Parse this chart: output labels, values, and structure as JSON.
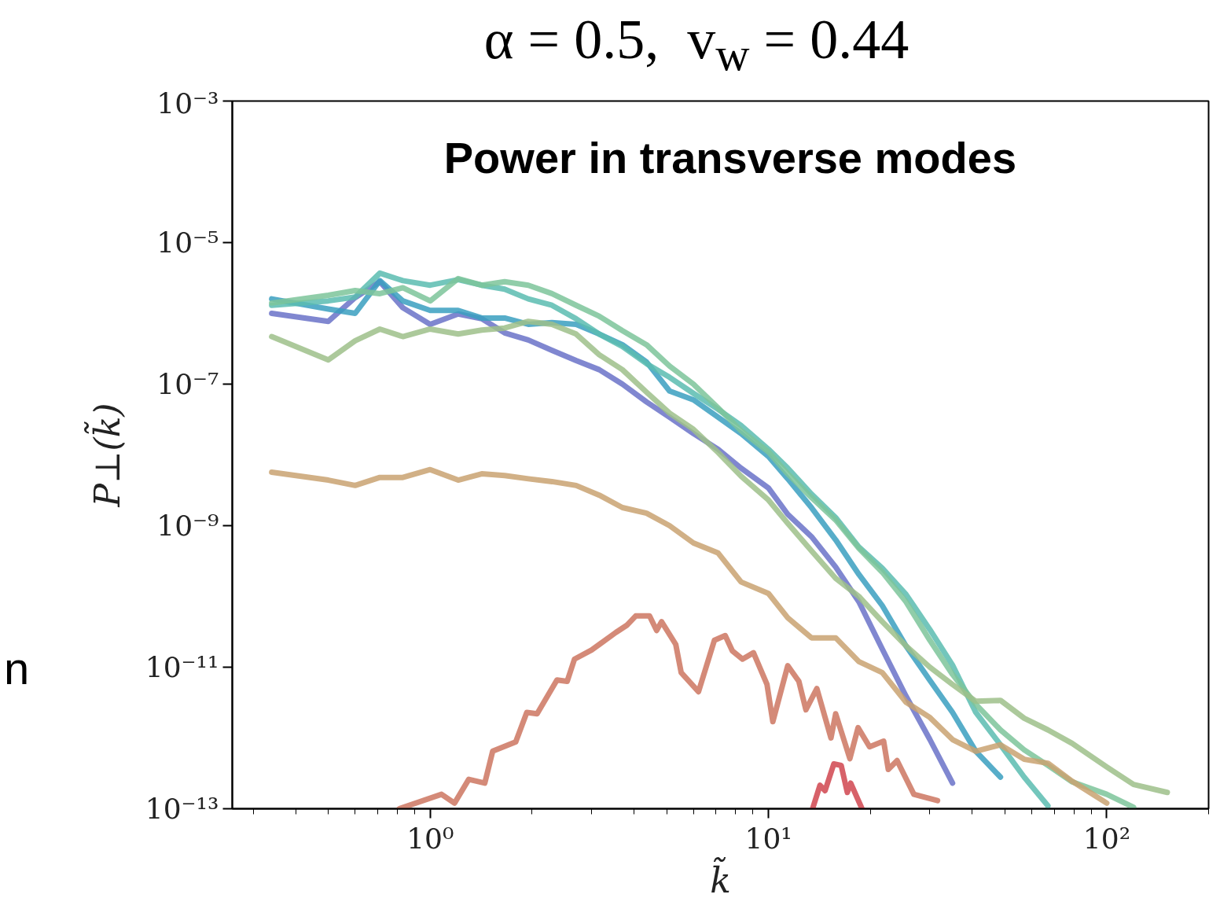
{
  "chart_data": {
    "type": "line",
    "title": "α = 0.5,  v$_{w}$ = 0.44",
    "subtitle": "Power in transverse modes",
    "xlabel": "k̃",
    "ylabel": "P⊥(k̃)",
    "annotations": [
      "n"
    ],
    "x": [
      0.34,
      0.5,
      0.6,
      0.71,
      0.83,
      1.0,
      1.21,
      1.42,
      1.66,
      1.95,
      2.29,
      2.7,
      3.16,
      3.7,
      4.36,
      5.1,
      6.0,
      7.1,
      8.3,
      10,
      11.4,
      13.4,
      15.8,
      18.5,
      21.7,
      25.5,
      30,
      35,
      41,
      48.5,
      57,
      67,
      79,
      100,
      120,
      151
    ],
    "series": [
      {
        "color": "#6a72c8",
        "values": [
          1e-06,
          7.7e-07,
          1.67e-06,
          2.8e-06,
          1.2e-06,
          7e-07,
          9.8e-07,
          8.4e-07,
          5.3e-07,
          4.2e-07,
          3e-07,
          2.15e-07,
          1.6e-07,
          1e-07,
          5.6e-08,
          3.4e-08,
          2e-08,
          1.2e-08,
          6.5e-09,
          3.4e-09,
          1.45e-09,
          7e-10,
          2.6e-10,
          8.4e-11,
          1.8e-11,
          3.9e-12,
          9.5e-13,
          2.3e-13,
          null,
          null,
          null,
          null,
          null,
          null,
          null,
          null
        ]
      },
      {
        "color": "#3a9fc0",
        "values": [
          1.6e-06,
          1.15e-06,
          1e-06,
          2.9e-06,
          1.5e-06,
          1.1e-06,
          1.1e-06,
          8.6e-07,
          8.6e-07,
          7e-07,
          7.4e-07,
          7e-07,
          5.1e-07,
          3.6e-07,
          2.05e-07,
          8e-08,
          6e-08,
          3.4e-08,
          2e-08,
          9.5e-09,
          4.6e-09,
          1.8e-09,
          6.3e-10,
          2.05e-10,
          7.4e-11,
          2e-11,
          6.5e-12,
          2.3e-12,
          6.5e-13,
          2.8e-13,
          null,
          null,
          null,
          null,
          null,
          null
        ]
      },
      {
        "color": "#5bbcb0",
        "values": [
          1.3e-06,
          1.5e-06,
          1.7e-06,
          3.7e-06,
          2.9e-06,
          2.5e-06,
          3e-06,
          2.5e-06,
          2.2e-06,
          1.6e-06,
          1.3e-06,
          8.4e-07,
          5.1e-07,
          3.4e-07,
          1.95e-07,
          1.25e-07,
          7.4e-08,
          4.4e-08,
          2.6e-08,
          1.2e-08,
          6.5e-09,
          2.8e-09,
          1.3e-09,
          5e-10,
          2.5e-10,
          1.07e-10,
          3.4e-11,
          1.07e-11,
          2.3e-12,
          8e-13,
          2.8e-13,
          1.1e-13,
          null,
          null,
          null,
          null
        ]
      },
      {
        "color": "#7cc49a",
        "values": [
          1.4e-06,
          1.8e-06,
          2.1e-06,
          1.9e-06,
          2.3e-06,
          1.5e-06,
          3.1e-06,
          2.5e-06,
          2.8e-06,
          2.5e-06,
          1.9e-06,
          1.3e-06,
          9.1e-07,
          5.7e-07,
          3.6e-07,
          1.8e-07,
          1e-07,
          4.6e-08,
          2.2e-08,
          1.1e-08,
          5.4e-09,
          2.5e-09,
          1.2e-09,
          4.8e-10,
          2.2e-10,
          8.4e-11,
          2.4e-11,
          7.9e-12,
          3e-12,
          1.3e-12,
          6.8e-13,
          4.1e-13,
          2.4e-13,
          1.6e-13,
          1.05e-13,
          null
        ]
      },
      {
        "color": "#9dbf8a",
        "values": [
          4.7e-07,
          2.2e-07,
          4.1e-07,
          6e-07,
          4.7e-07,
          6e-07,
          5.1e-07,
          5.8e-07,
          6.2e-07,
          7.7e-07,
          7e-07,
          5.1e-07,
          2.6e-07,
          1.6e-07,
          7.7e-08,
          3.9e-08,
          2.3e-08,
          1.08e-08,
          5e-09,
          2.3e-09,
          1.08e-09,
          4.4e-10,
          1.8e-10,
          1e-10,
          4.4e-11,
          2e-11,
          1e-11,
          5.7e-12,
          3.3e-12,
          3.4e-12,
          1.9e-12,
          1.3e-12,
          8.4e-13,
          3.9e-13,
          2.2e-13,
          1.7e-13
        ]
      },
      {
        "color": "#c9a271",
        "values": [
          5.7e-09,
          4.4e-09,
          3.7e-09,
          4.8e-09,
          4.8e-09,
          6.2e-09,
          4.4e-09,
          5.4e-09,
          5.1e-09,
          4.6e-09,
          4.2e-09,
          3.7e-09,
          2.7e-09,
          1.8e-09,
          1.5e-09,
          1e-09,
          5.7e-10,
          4.1e-10,
          1.6e-10,
          1.1e-10,
          5e-11,
          2.6e-11,
          2.6e-11,
          1.2e-11,
          8.4e-12,
          3.2e-12,
          1.95e-12,
          9.5e-13,
          6.5e-13,
          8e-13,
          5e-13,
          4.4e-13,
          2.45e-13,
          1.2e-13,
          null,
          null
        ]
      },
      {
        "color": "#cd7560",
        "x": [
          0.81,
          1.08,
          1.18,
          1.3,
          1.45,
          1.53,
          1.79,
          1.93,
          2.07,
          2.37,
          2.54,
          2.67,
          3.0,
          3.54,
          3.81,
          4.05,
          4.45,
          4.67,
          4.83,
          5.32,
          5.52,
          6.21,
          6.92,
          7.45,
          7.82,
          8.38,
          9.03,
          9.9,
          10.3,
          11.4,
          12.3,
          12.9,
          13.9,
          15.3,
          15.8,
          17.4,
          18.4,
          19.9,
          21.9,
          22.6,
          24.0,
          26.9,
          31.6
        ],
        "values": [
          1e-13,
          1.6e-13,
          1.2e-13,
          2.6e-13,
          2.3e-13,
          6.5e-13,
          8.8e-13,
          2.3e-12,
          2.2e-12,
          6.6e-12,
          6.3e-12,
          1.3e-11,
          1.75e-11,
          3.1e-11,
          3.9e-11,
          5.3e-11,
          5.3e-11,
          3.3e-11,
          4.4e-11,
          2.1e-11,
          8.4e-12,
          4.5e-12,
          2.4e-11,
          2.8e-11,
          1.7e-11,
          1.3e-11,
          1.6e-11,
          5.7e-12,
          1.7e-12,
          1.05e-11,
          6.3e-12,
          2.5e-12,
          5e-12,
          1e-12,
          2.2e-12,
          5.1e-13,
          1.4e-12,
          7.5e-13,
          9e-13,
          3.6e-13,
          4.8e-13,
          1.6e-13,
          1.3e-13
        ]
      },
      {
        "color": "#d0454f",
        "x": [
          13.5,
          14.2,
          14.7,
          15.6,
          16.4,
          17.1,
          17.5,
          18.9
        ],
        "values": [
          1e-13,
          2.15e-13,
          1.8e-13,
          4.3e-13,
          4.1e-13,
          1.7e-13,
          2.3e-13,
          1e-13
        ]
      }
    ],
    "log": "xy",
    "xlim": [
      0.26,
      200
    ],
    "ylim": [
      1e-13,
      0.001
    ],
    "xticks": [
      {
        "value": 0.3,
        "label": null
      },
      {
        "value": 0.4,
        "label": null
      },
      {
        "value": 0.5,
        "label": null
      },
      {
        "value": 0.6,
        "label": null
      },
      {
        "value": 0.7,
        "label": null
      },
      {
        "value": 0.8,
        "label": null
      },
      {
        "value": 0.9,
        "label": null
      },
      {
        "value": 1,
        "label": "10⁰"
      },
      {
        "value": 2,
        "label": null
      },
      {
        "value": 3,
        "label": null
      },
      {
        "value": 4,
        "label": null
      },
      {
        "value": 5,
        "label": null
      },
      {
        "value": 6,
        "label": null
      },
      {
        "value": 7,
        "label": null
      },
      {
        "value": 8,
        "label": null
      },
      {
        "value": 9,
        "label": null
      },
      {
        "value": 10,
        "label": "10¹"
      },
      {
        "value": 20,
        "label": null
      },
      {
        "value": 30,
        "label": null
      },
      {
        "value": 40,
        "label": null
      },
      {
        "value": 50,
        "label": null
      },
      {
        "value": 60,
        "label": null
      },
      {
        "value": 70,
        "label": null
      },
      {
        "value": 80,
        "label": null
      },
      {
        "value": 90,
        "label": null
      },
      {
        "value": 100,
        "label": "10²"
      },
      {
        "value": 200,
        "label": null
      }
    ],
    "yticks": [
      {
        "value": 1e-13,
        "label": "10⁻¹³"
      },
      {
        "value": 1e-11,
        "label": "10⁻¹¹"
      },
      {
        "value": 1e-09,
        "label": "10⁻⁹"
      },
      {
        "value": 1e-07,
        "label": "10⁻⁷"
      },
      {
        "value": 1e-05,
        "label": "10⁻⁵"
      },
      {
        "value": 0.001,
        "label": "10⁻³"
      }
    ]
  }
}
